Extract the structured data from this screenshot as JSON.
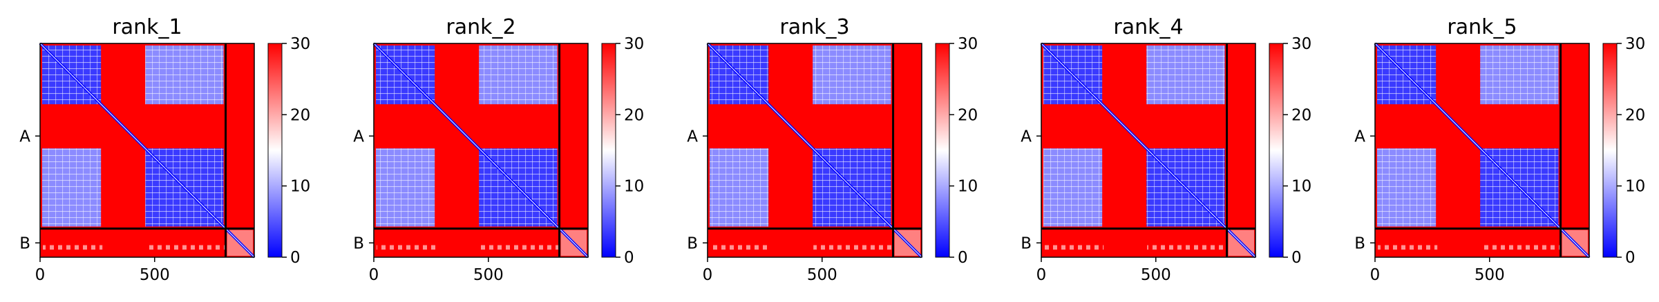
{
  "chart_data": {
    "type": "heatmap",
    "colormap": {
      "name": "bwr",
      "low": "#0000ff",
      "mid": "#ffffff",
      "high": "#ff0000"
    },
    "vrange": [
      0,
      30
    ],
    "colorbar_ticks": [
      "0",
      "10",
      "20",
      "30"
    ],
    "x_range": [
      0,
      935
    ],
    "x_ticks": [
      {
        "label": "0",
        "value": 0
      },
      {
        "label": "500",
        "value": 500
      }
    ],
    "chain_boundary": 810,
    "chains": [
      {
        "label": "A",
        "start": 0,
        "end": 810
      },
      {
        "label": "B",
        "start": 810,
        "end": 935
      }
    ],
    "domains": [
      [
        0,
        275
      ],
      [
        275,
        450
      ],
      [
        450,
        810
      ],
      [
        810,
        935
      ]
    ],
    "panels": [
      {
        "title": "rank_1"
      },
      {
        "title": "rank_2"
      },
      {
        "title": "rank_3"
      },
      {
        "title": "rank_4"
      },
      {
        "title": "rank_5"
      }
    ]
  }
}
